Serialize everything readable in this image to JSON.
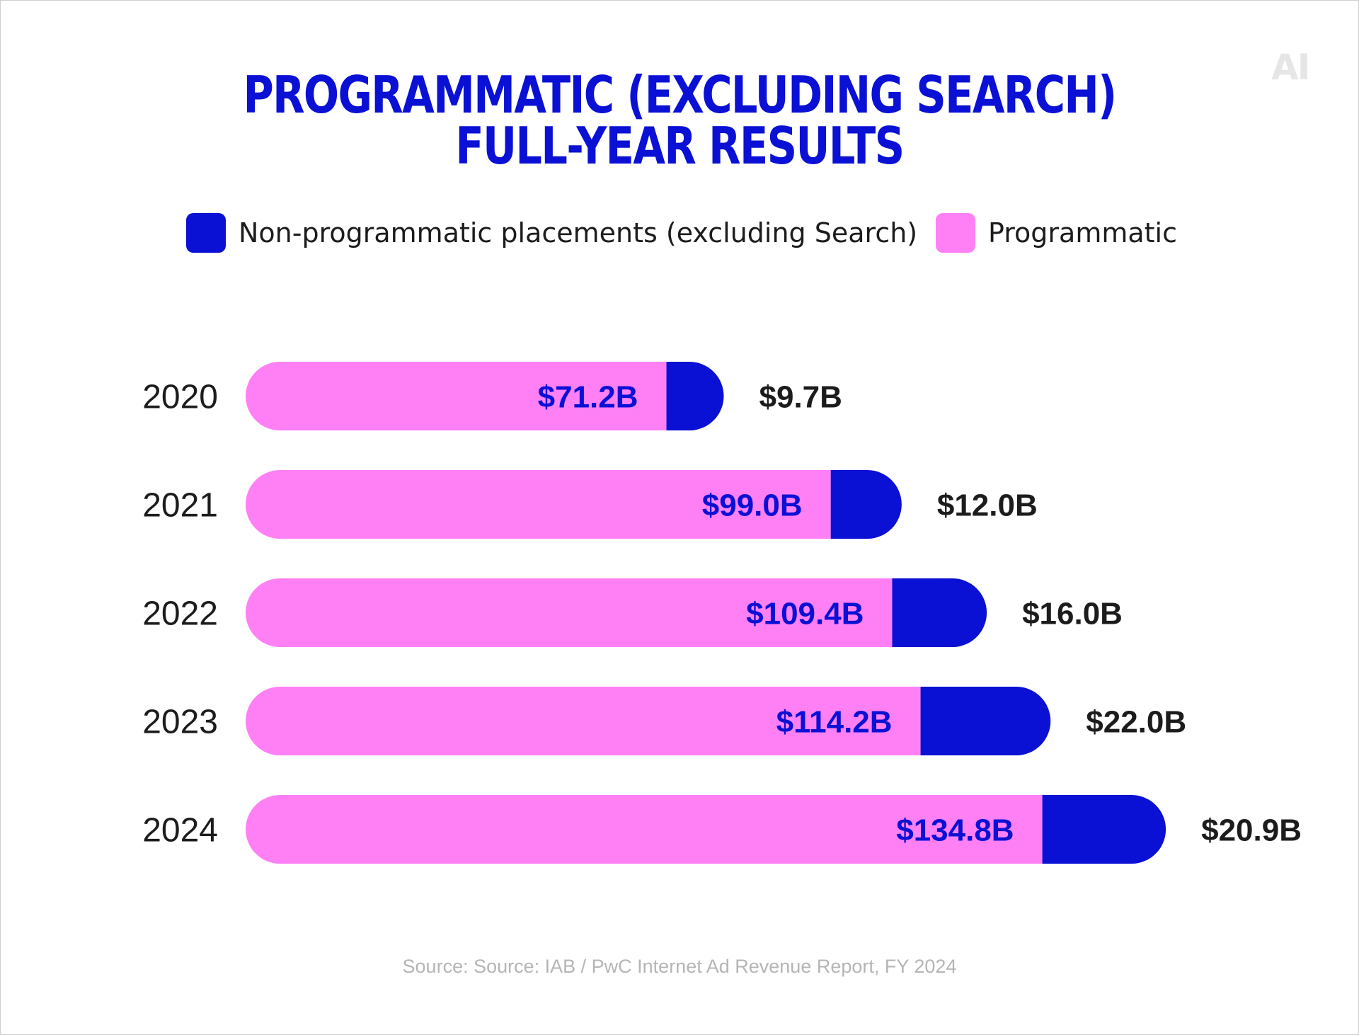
{
  "logo": "AI",
  "chart_data": {
    "type": "bar",
    "orientation": "horizontal",
    "stacked": true,
    "title": "PROGRAMMATIC (EXCLUDING SEARCH)\nFULL-YEAR RESULTS",
    "title_lines": [
      "PROGRAMMATIC (EXCLUDING SEARCH)",
      "FULL-YEAR RESULTS"
    ],
    "categories": [
      "2020",
      "2021",
      "2022",
      "2023",
      "2024"
    ],
    "series": [
      {
        "name": "Programmatic",
        "color": "#ff80f5",
        "values": [
          71.2,
          99.0,
          109.4,
          114.2,
          134.8
        ],
        "labels": [
          "$71.2B",
          "$99.0B",
          "$109.4B",
          "$114.2B",
          "$134.8B"
        ]
      },
      {
        "name": "Non-programmatic placements (excluding Search)",
        "color": "#0a10d4",
        "values": [
          9.7,
          12.0,
          16.0,
          22.0,
          20.9
        ],
        "labels": [
          "$9.7B",
          "$12.0B",
          "$16.0B",
          "$22.0B",
          "$20.9B"
        ]
      }
    ],
    "legend": {
      "placement": "top",
      "items": [
        {
          "label": "Non-programmatic placements (excluding Search)",
          "color": "#0a10d4"
        },
        {
          "label": "Programmatic",
          "color": "#ff80f5"
        }
      ]
    },
    "grid": false,
    "source": "Source: Source: IAB / PwC Internet Ad Revenue Report, FY 2024"
  }
}
